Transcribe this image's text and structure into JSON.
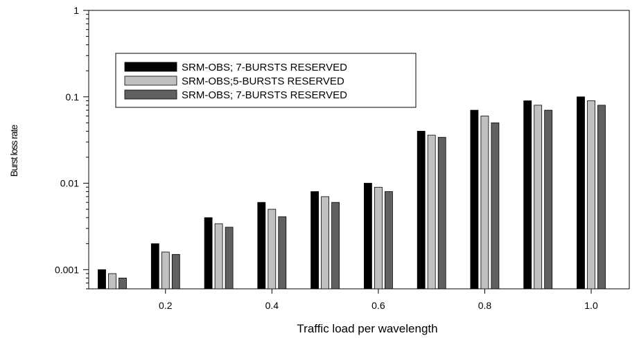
{
  "chart_data": {
    "type": "bar",
    "title": "",
    "xlabel": "Traffic load per wavelength",
    "ylabel": "Burst loss rate",
    "x": [
      0.1,
      0.2,
      0.3,
      0.4,
      0.5,
      0.6,
      0.7,
      0.8,
      0.9,
      1.0
    ],
    "x_tick_labels": [
      "0.2",
      "0.4",
      "0.6",
      "0.8",
      "1.0"
    ],
    "y_scale": "log",
    "ylim": [
      0.0006,
      1
    ],
    "y_tick_labels": [
      "0.001",
      "0.01",
      "0.1",
      "1"
    ],
    "grid": false,
    "legend_position": "top-left",
    "series": [
      {
        "name": "SRM-OBS; 7-BURSTS RESERVED",
        "color": "#000000",
        "values": [
          0.001,
          0.002,
          0.004,
          0.006,
          0.008,
          0.01,
          0.04,
          0.07,
          0.09,
          0.1
        ]
      },
      {
        "name": "SRM-OBS;5-BURSTS RESERVED",
        "color": "#c0c0c0",
        "values": [
          0.0009,
          0.0016,
          0.0034,
          0.005,
          0.007,
          0.009,
          0.036,
          0.06,
          0.08,
          0.09
        ]
      },
      {
        "name": "SRM-OBS; 7-BURSTS RESERVED",
        "color": "#606060",
        "values": [
          0.0008,
          0.0015,
          0.0031,
          0.0041,
          0.006,
          0.008,
          0.034,
          0.05,
          0.07,
          0.08
        ]
      }
    ]
  }
}
